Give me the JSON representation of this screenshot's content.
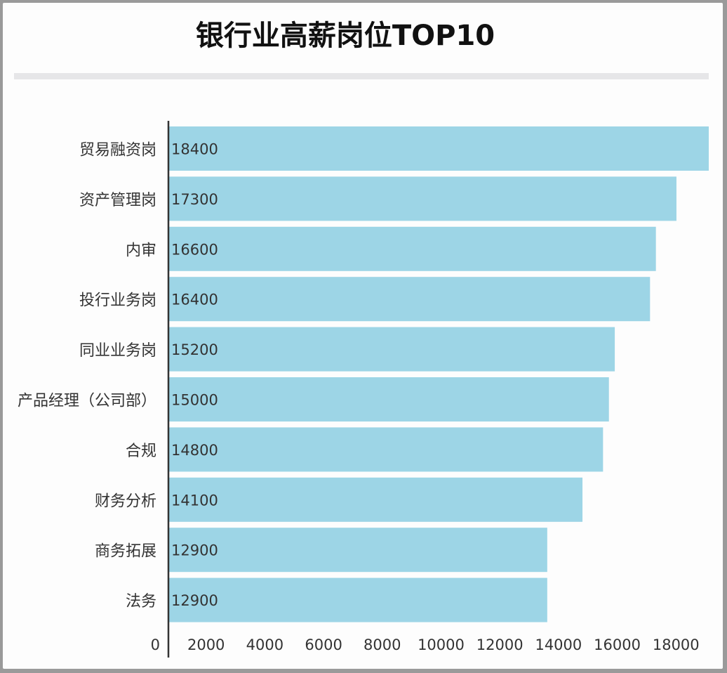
{
  "chart_data": {
    "type": "bar",
    "orientation": "horizontal",
    "title": "银行业高薪岗位TOP10",
    "categories": [
      "贸易融资岗",
      "资产管理岗",
      "内审",
      "投行业务岗",
      "同业业务岗",
      "产品经理（公司部）",
      "合规",
      "财务分析",
      "商务拓展",
      "法务"
    ],
    "values": [
      18400,
      17300,
      16600,
      16400,
      15200,
      15000,
      14800,
      14100,
      12900,
      12900
    ],
    "x_ticks": [
      "0",
      "2000",
      "4000",
      "6000",
      "8000",
      "10000",
      "12000",
      "14000",
      "16000",
      "18000"
    ],
    "xlim": [
      0,
      18400
    ],
    "grid": false,
    "colors": {
      "bar": "#9dd5e6",
      "axis": "#333333",
      "text": "#333333"
    }
  }
}
